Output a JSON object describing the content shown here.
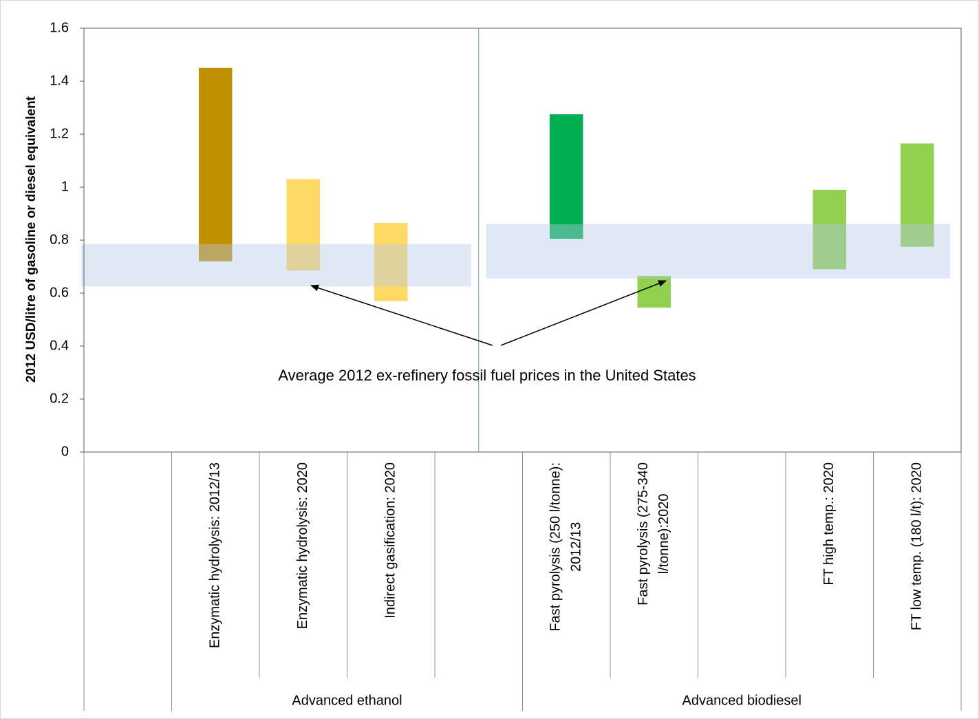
{
  "chart_data": {
    "type": "range_bar",
    "y_axis_label": "2012 USD/litre of gasoline or diesel equivalent",
    "categories": [
      null,
      "Enzymatic hydrolysis: 2012/13",
      "Enzymatic hydrolysis: 2020",
      "Indirect gasification: 2020",
      null,
      "Fast pyrolysis (250 l/tonne): 2012/13",
      "Fast pyrolysis (275-340 l/tonne):2020",
      null,
      "FT high temp.: 2020",
      "FT low temp. (180 l/t): 2020"
    ],
    "low": [
      null,
      0.72,
      0.685,
      0.57,
      null,
      0.805,
      0.545,
      null,
      0.69,
      0.775
    ],
    "high": [
      null,
      1.45,
      1.03,
      0.865,
      null,
      1.275,
      0.665,
      null,
      0.99,
      1.165
    ],
    "colors": [
      null,
      "#bf9000",
      "#ffd966",
      "#ffd966",
      null,
      "#00b050",
      "#92d050",
      null,
      "#92d050",
      "#92d050"
    ],
    "groups": [
      "Advanced ethanol",
      "Advanced biodiesel"
    ],
    "reference_bands": [
      {
        "low": 0.625,
        "high": 0.785
      },
      {
        "low": 0.655,
        "high": 0.86
      }
    ],
    "band_color": "#b4c7e7",
    "annotation": "Average 2012 ex-refinery fossil fuel prices in the United States",
    "ylim": [
      0,
      1.6
    ],
    "yticks": [
      0,
      0.2,
      0.4,
      0.6,
      0.8,
      1,
      1.2,
      1.4,
      1.6
    ],
    "grid": false
  }
}
